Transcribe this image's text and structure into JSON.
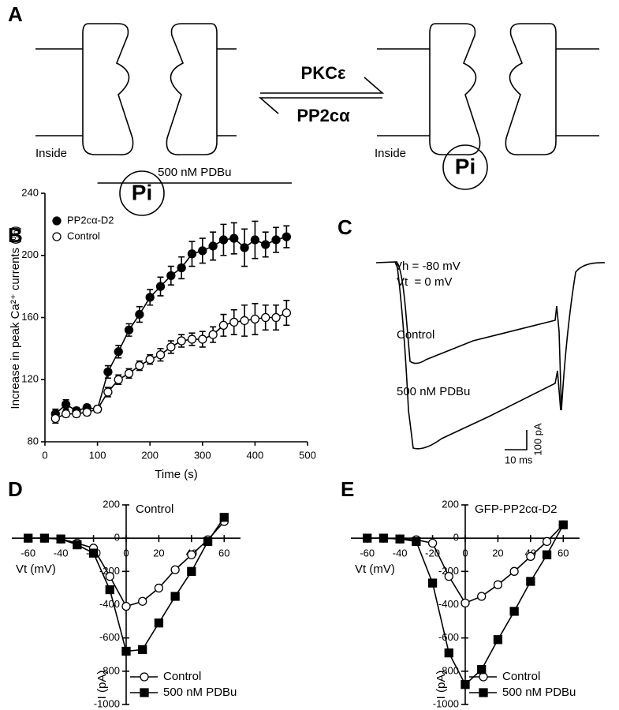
{
  "diagram": {
    "panel_label": "A",
    "left": {
      "inside": "Inside",
      "pi": "Pi"
    },
    "right": {
      "inside": "Inside",
      "pi": "Pi"
    },
    "forward": "PKCε",
    "reverse": "PP2cα"
  },
  "traces": {
    "panel_label": "C",
    "holding": "Vh = -80 mV",
    "test": "Vt  = 0 mV",
    "control": "Control",
    "treated": "500 nM PDBu",
    "scale_current": "100 pA",
    "scale_time": "10 ms"
  },
  "chart_data": [
    {
      "type": "line",
      "panel_label": "B",
      "axis_position": "edge",
      "legend": "upper left",
      "xlabel": "Time (s)",
      "ylabel": "Increase in peak Ca²⁺ currents (%)",
      "annotation": {
        "text": "500 nM PDBu",
        "x": [
          100,
          470
        ]
      },
      "xlim": [
        0,
        500
      ],
      "xticks": [
        0,
        100,
        200,
        300,
        400,
        500
      ],
      "ylim": [
        80,
        240
      ],
      "yticks": [
        80,
        120,
        160,
        200,
        240
      ],
      "x": [
        20,
        40,
        60,
        80,
        100,
        120,
        140,
        160,
        180,
        200,
        220,
        240,
        260,
        280,
        300,
        320,
        340,
        360,
        380,
        400,
        420,
        440,
        460
      ],
      "series": [
        {
          "name": "PP2cα-D2",
          "color": "#000000",
          "marker": "filled-circle",
          "values": [
            98,
            104,
            100,
            102,
            101,
            125,
            138,
            152,
            162,
            173,
            180,
            187,
            192,
            201,
            203,
            206,
            210,
            211,
            205,
            210,
            207,
            210,
            212
          ],
          "errors": [
            3,
            3,
            2,
            2,
            2,
            4,
            4,
            4,
            5,
            5,
            6,
            6,
            7,
            8,
            8,
            9,
            10,
            10,
            12,
            12,
            8,
            8,
            7
          ]
        },
        {
          "name": "Control",
          "color": "#000000",
          "marker": "open-circle",
          "values": [
            95,
            98,
            98,
            99,
            101,
            112,
            120,
            124,
            129,
            133,
            136,
            141,
            145,
            146,
            146,
            149,
            155,
            157,
            158,
            159,
            160,
            160,
            163
          ],
          "errors": [
            3,
            2,
            2,
            2,
            2,
            3,
            3,
            3,
            3,
            3,
            4,
            4,
            4,
            4,
            5,
            5,
            7,
            8,
            10,
            10,
            8,
            8,
            8
          ]
        }
      ]
    },
    {
      "type": "line",
      "panel_label": "D",
      "axis_position": "origin",
      "legend": "lower right",
      "xlabel": "Vt (mV)",
      "ylabel": "I (pA)",
      "annotation": {
        "text": "Control"
      },
      "xlim": [
        -70,
        70
      ],
      "xticks": [
        -60,
        -40,
        -20,
        0,
        20,
        40,
        60
      ],
      "ylim": [
        -1000,
        200
      ],
      "yticks": [
        -1000,
        -800,
        -600,
        -400,
        -200,
        0,
        200
      ],
      "x": [
        -60,
        -50,
        -40,
        -30,
        -20,
        -10,
        0,
        10,
        20,
        30,
        40,
        50,
        60
      ],
      "series": [
        {
          "name": "Control",
          "color": "#000000",
          "marker": "open-circle",
          "values": [
            0,
            0,
            -5,
            -30,
            -60,
            -230,
            -410,
            -380,
            -300,
            -190,
            -100,
            -10,
            100
          ]
        },
        {
          "name": "500 nM PDBu",
          "color": "#000000",
          "marker": "filled-square",
          "values": [
            0,
            0,
            -5,
            -40,
            -90,
            -310,
            -680,
            -670,
            -510,
            -350,
            -200,
            -20,
            125
          ]
        }
      ]
    },
    {
      "type": "line",
      "panel_label": "E",
      "axis_position": "origin",
      "legend": "lower right",
      "xlabel": "Vt (mV)",
      "ylabel": "I (pA)",
      "annotation": {
        "text": "GFP-PP2cα-D2"
      },
      "xlim": [
        -70,
        70
      ],
      "xticks": [
        -60,
        -40,
        -20,
        0,
        20,
        40,
        60
      ],
      "ylim": [
        -1000,
        200
      ],
      "yticks": [
        -1000,
        -800,
        -600,
        -400,
        -200,
        0,
        200
      ],
      "x": [
        -60,
        -50,
        -40,
        -30,
        -20,
        -10,
        0,
        10,
        20,
        30,
        40,
        50,
        60
      ],
      "series": [
        {
          "name": "Control",
          "color": "#000000",
          "marker": "open-circle",
          "values": [
            0,
            0,
            -5,
            -10,
            -30,
            -230,
            -390,
            -350,
            -280,
            -200,
            -110,
            -20,
            80
          ]
        },
        {
          "name": "500 nM PDBu",
          "color": "#000000",
          "marker": "filled-square",
          "values": [
            0,
            0,
            -5,
            -20,
            -270,
            -690,
            -880,
            -790,
            -610,
            -440,
            -260,
            -100,
            80
          ]
        }
      ]
    }
  ]
}
